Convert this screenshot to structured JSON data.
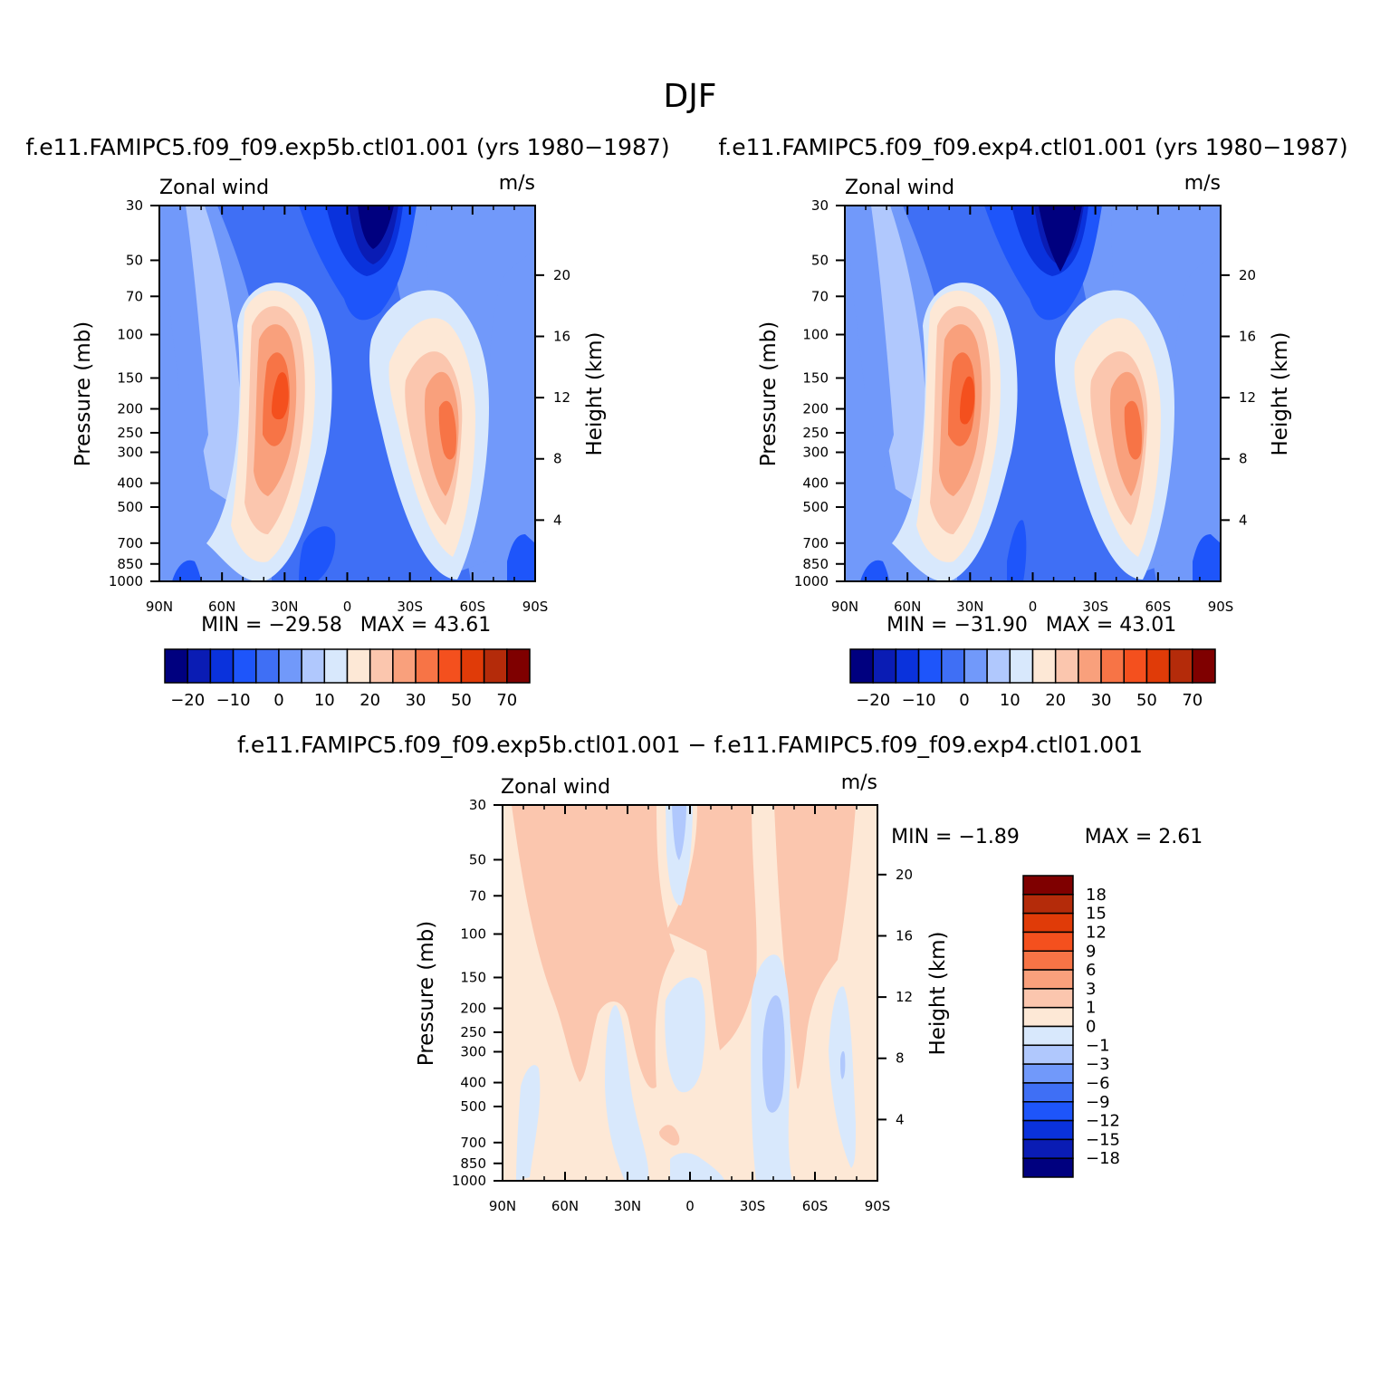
{
  "chart_data": {
    "title": "DJF",
    "panels": [
      {
        "type": "heatmap",
        "kind": "latitude-pressure contour",
        "subtitle": "f.e11.FAMIPC5.f09_f09.exp5b.ctl01.001 (yrs 1980−1987)",
        "left_string": "Zonal wind",
        "right_string": "m/s",
        "ylabel": "Pressure (mb)",
        "ylabel_right": "Height (km)",
        "x_ticks": [
          "90N",
          "60N",
          "30N",
          "0",
          "30S",
          "60S",
          "90S"
        ],
        "y_ticks": [
          30,
          50,
          70,
          100,
          150,
          200,
          250,
          300,
          400,
          500,
          700,
          850,
          1000
        ],
        "y_right_ticks": [
          20,
          16,
          12,
          8,
          4
        ],
        "min_label": "MIN = −29.58",
        "max_label": "MAX = 43.61",
        "min": -29.58,
        "max": 43.61,
        "colorbar_labels": [
          "−20",
          "−10",
          "0",
          "10",
          "20",
          "30",
          "50",
          "70"
        ]
      },
      {
        "type": "heatmap",
        "kind": "latitude-pressure contour",
        "subtitle": "f.e11.FAMIPC5.f09_f09.exp4.ctl01.001 (yrs 1980−1987)",
        "left_string": "Zonal wind",
        "right_string": "m/s",
        "ylabel": "Pressure (mb)",
        "ylabel_right": "Height (km)",
        "x_ticks": [
          "90N",
          "60N",
          "30N",
          "0",
          "30S",
          "60S",
          "90S"
        ],
        "y_ticks": [
          30,
          50,
          70,
          100,
          150,
          200,
          250,
          300,
          400,
          500,
          700,
          850,
          1000
        ],
        "y_right_ticks": [
          20,
          16,
          12,
          8,
          4
        ],
        "min_label": "MIN = −31.90",
        "max_label": "MAX = 43.01",
        "min": -31.9,
        "max": 43.01,
        "colorbar_labels": [
          "−20",
          "−10",
          "0",
          "10",
          "20",
          "30",
          "50",
          "70"
        ]
      },
      {
        "type": "heatmap",
        "kind": "latitude-pressure difference contour",
        "subtitle": "f.e11.FAMIPC5.f09_f09.exp5b.ctl01.001 − f.e11.FAMIPC5.f09_f09.exp4.ctl01.001",
        "left_string": "Zonal wind",
        "right_string": "m/s",
        "ylabel": "Pressure (mb)",
        "ylabel_right": "Height (km)",
        "x_ticks": [
          "90N",
          "60N",
          "30N",
          "0",
          "30S",
          "60S",
          "90S"
        ],
        "y_ticks": [
          30,
          50,
          70,
          100,
          150,
          200,
          250,
          300,
          400,
          500,
          700,
          850,
          1000
        ],
        "y_right_ticks": [
          20,
          16,
          12,
          8,
          4
        ],
        "min_label": "MIN = −1.89",
        "max_label": "MAX = 2.61",
        "min": -1.89,
        "max": 2.61,
        "colorbar_labels": [
          "18",
          "15",
          "12",
          "9",
          "6",
          "3",
          "1",
          "0",
          "−1",
          "−3",
          "−6",
          "−9",
          "−12",
          "−15",
          "−18"
        ]
      }
    ],
    "colors": {
      "palette": [
        "#00007f",
        "#0a1cb4",
        "#0a32dc",
        "#1e55fa",
        "#3f6ff5",
        "#7199fa",
        "#b0c8fd",
        "#d8e8fc",
        "#fde8d6",
        "#fbc6ae",
        "#f9a07c",
        "#f77446",
        "#f4501e",
        "#e03b08",
        "#b42b0a",
        "#7f0000"
      ],
      "diff_palette": [
        "#7f0000",
        "#b42b0a",
        "#e03b08",
        "#f4501e",
        "#f77446",
        "#f9a07c",
        "#fbc6ae",
        "#fde8d6",
        "#d8e8fc",
        "#b0c8fd",
        "#7199fa",
        "#3f6ff5",
        "#1e55fa",
        "#0a32dc",
        "#0a1cb4",
        "#00007f"
      ]
    }
  }
}
